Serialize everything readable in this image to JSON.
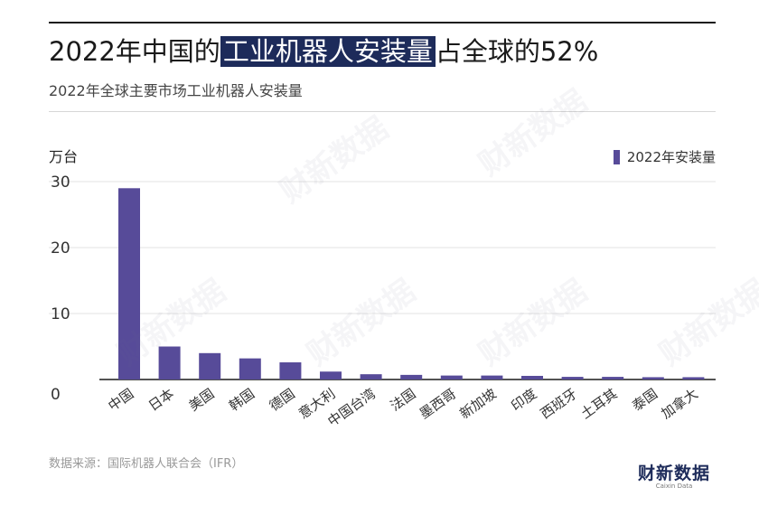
{
  "title": {
    "prefix": "2022年中国的",
    "highlight": "工业机器人安装量",
    "suffix": "占全球的52%"
  },
  "subtitle": "2022年全球主要市场工业机器人安装量",
  "unit_label": "万台",
  "source": "数据来源：国际机器人联合会（IFR）",
  "brand": {
    "name": "财新数据",
    "sub": "Caixin Data"
  },
  "watermark_text": "财新数据",
  "colors": {
    "bar": "#574b99",
    "grid": "#e3e3e3",
    "axis": "#1a1a1a",
    "highlight_bg": "#1d2b5a"
  },
  "chart_data": {
    "type": "bar",
    "categories": [
      "中国",
      "日本",
      "美国",
      "韩国",
      "德国",
      "意大利",
      "中国台湾",
      "法国",
      "墨西哥",
      "新加坡",
      "印度",
      "西班牙",
      "土耳其",
      "泰国",
      "加拿大"
    ],
    "series": [
      {
        "name": "2022年安装量",
        "values": [
          29.0,
          5.0,
          4.0,
          3.2,
          2.6,
          1.2,
          0.8,
          0.7,
          0.6,
          0.6,
          0.55,
          0.4,
          0.4,
          0.35,
          0.35
        ]
      }
    ],
    "ylim": [
      0,
      30
    ],
    "yticks": [
      0,
      10,
      20,
      30
    ],
    "grid": true,
    "legend": "top-right",
    "xlabel": "",
    "ylabel": "万台"
  }
}
